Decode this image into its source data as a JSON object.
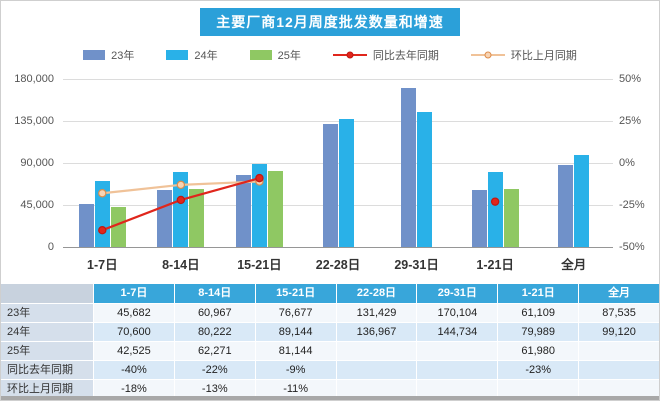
{
  "title": "主要厂商12月周度批发数量和增速",
  "legend": [
    {
      "label": "23年",
      "type": "bar",
      "color": "#7091c9"
    },
    {
      "label": "24年",
      "type": "bar",
      "color": "#29b1e8"
    },
    {
      "label": "25年",
      "type": "bar",
      "color": "#8fc863"
    },
    {
      "label": "同比去年同期",
      "type": "line",
      "line": "#e0261c",
      "marker_fill": "#e0261c",
      "marker_border": "#c01712"
    },
    {
      "label": "环比上月同期",
      "type": "line",
      "line": "#f0c298",
      "marker_fill": "#f7d4b4",
      "marker_border": "#dd8c4a"
    }
  ],
  "chart_data": {
    "type": "bar",
    "categories": [
      "1-7日",
      "8-14日",
      "15-21日",
      "22-28日",
      "29-31日",
      "1-21日",
      "全月"
    ],
    "series": [
      {
        "name": "23年",
        "type": "bar",
        "values": [
          45682,
          60967,
          76677,
          131429,
          170104,
          61109,
          87535
        ]
      },
      {
        "name": "24年",
        "type": "bar",
        "values": [
          70600,
          80222,
          89144,
          136967,
          144734,
          79989,
          99120
        ]
      },
      {
        "name": "25年",
        "type": "bar",
        "values": [
          42525,
          62271,
          81144,
          null,
          null,
          61980,
          null
        ]
      },
      {
        "name": "同比去年同期",
        "type": "line",
        "axis": "right",
        "values": [
          -40,
          -22,
          -9,
          null,
          null,
          -23,
          null
        ]
      },
      {
        "name": "环比上月同期",
        "type": "line",
        "axis": "right",
        "values": [
          -18,
          -13,
          -11,
          null,
          null,
          null,
          null
        ]
      }
    ],
    "left_axis": {
      "ticks": [
        "180,000",
        "135,000",
        "90,000",
        "45,000",
        "0"
      ],
      "min": 0,
      "max": 180000
    },
    "right_axis": {
      "ticks": [
        "50%",
        "25%",
        "0%",
        "-25%",
        "-50%"
      ],
      "min": -50,
      "max": 50
    },
    "grid": true,
    "legend_position": "top"
  },
  "table": {
    "columns": [
      "",
      "1-7日",
      "8-14日",
      "15-21日",
      "22-28日",
      "29-31日",
      "1-21日",
      "全月"
    ],
    "rows": [
      {
        "label": "23年",
        "values": [
          "45,682",
          "60,967",
          "76,677",
          "131,429",
          "170,104",
          "61,109",
          "87,535"
        ]
      },
      {
        "label": "24年",
        "values": [
          "70,600",
          "80,222",
          "89,144",
          "136,967",
          "144,734",
          "79,989",
          "99,120"
        ]
      },
      {
        "label": "25年",
        "values": [
          "42,525",
          "62,271",
          "81,144",
          "",
          "",
          "61,980",
          ""
        ]
      },
      {
        "label": "同比去年同期",
        "values": [
          "-40%",
          "-22%",
          "-9%",
          "",
          "",
          "-23%",
          ""
        ]
      },
      {
        "label": "环比上月同期",
        "values": [
          "-18%",
          "-13%",
          "-11%",
          "",
          "",
          "",
          ""
        ]
      }
    ]
  }
}
